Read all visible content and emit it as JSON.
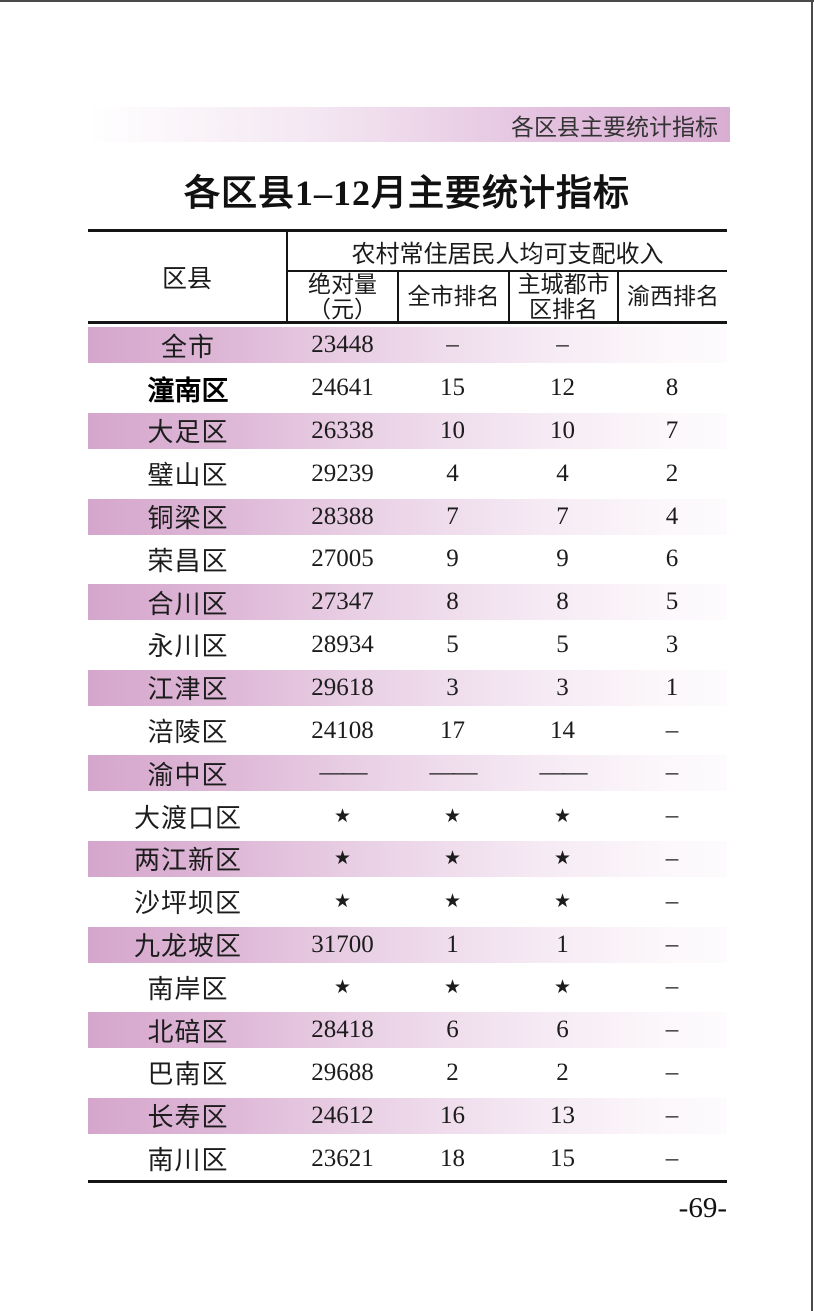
{
  "page": {
    "banner_label": "各区县主要统计指标",
    "title": "各区县1–12月主要统计指标",
    "page_number": "-69-"
  },
  "table": {
    "corner_header": "区县",
    "group_header": "农村常住居民人均可支配收入",
    "sub_headers": [
      "绝对量\n（元）",
      "全市排名",
      "主城都市\n区排名",
      "渝西排名"
    ],
    "rows": [
      {
        "name": "全市",
        "values": [
          "23448",
          "–",
          "–",
          ""
        ],
        "highlight": true,
        "bold": false
      },
      {
        "name": "潼南区",
        "values": [
          "24641",
          "15",
          "12",
          "8"
        ],
        "highlight": false,
        "bold": true
      },
      {
        "name": "大足区",
        "values": [
          "26338",
          "10",
          "10",
          "7"
        ],
        "highlight": true,
        "bold": false
      },
      {
        "name": "璧山区",
        "values": [
          "29239",
          "4",
          "4",
          "2"
        ],
        "highlight": false,
        "bold": false
      },
      {
        "name": "铜梁区",
        "values": [
          "28388",
          "7",
          "7",
          "4"
        ],
        "highlight": true,
        "bold": false
      },
      {
        "name": "荣昌区",
        "values": [
          "27005",
          "9",
          "9",
          "6"
        ],
        "highlight": false,
        "bold": false
      },
      {
        "name": "合川区",
        "values": [
          "27347",
          "8",
          "8",
          "5"
        ],
        "highlight": true,
        "bold": false
      },
      {
        "name": "永川区",
        "values": [
          "28934",
          "5",
          "5",
          "3"
        ],
        "highlight": false,
        "bold": false
      },
      {
        "name": "江津区",
        "values": [
          "29618",
          "3",
          "3",
          "1"
        ],
        "highlight": true,
        "bold": false
      },
      {
        "name": "涪陵区",
        "values": [
          "24108",
          "17",
          "14",
          "–"
        ],
        "highlight": false,
        "bold": false
      },
      {
        "name": "渝中区",
        "values": [
          "——",
          "——",
          "——",
          "–"
        ],
        "highlight": true,
        "bold": false
      },
      {
        "name": "大渡口区",
        "values": [
          "★",
          "★",
          "★",
          "–"
        ],
        "highlight": false,
        "bold": false
      },
      {
        "name": "两江新区",
        "values": [
          "★",
          "★",
          "★",
          "–"
        ],
        "highlight": true,
        "bold": false
      },
      {
        "name": "沙坪坝区",
        "values": [
          "★",
          "★",
          "★",
          "–"
        ],
        "highlight": false,
        "bold": false
      },
      {
        "name": "九龙坡区",
        "values": [
          "31700",
          "1",
          "1",
          "–"
        ],
        "highlight": true,
        "bold": false
      },
      {
        "name": "南岸区",
        "values": [
          "★",
          "★",
          "★",
          "–"
        ],
        "highlight": false,
        "bold": false
      },
      {
        "name": "北碚区",
        "values": [
          "28418",
          "6",
          "6",
          "–"
        ],
        "highlight": true,
        "bold": false
      },
      {
        "name": "巴南区",
        "values": [
          "29688",
          "2",
          "2",
          "–"
        ],
        "highlight": false,
        "bold": false
      },
      {
        "name": "长寿区",
        "values": [
          "24612",
          "16",
          "13",
          "–"
        ],
        "highlight": true,
        "bold": false
      },
      {
        "name": "南川区",
        "values": [
          "23621",
          "18",
          "15",
          "–"
        ],
        "highlight": false,
        "bold": false
      }
    ]
  },
  "colors": {
    "accent_pink": "#d5a6cc",
    "banner_pink": "#d9aed3",
    "border": "#151515",
    "edge_line": "#4a4a4a"
  }
}
